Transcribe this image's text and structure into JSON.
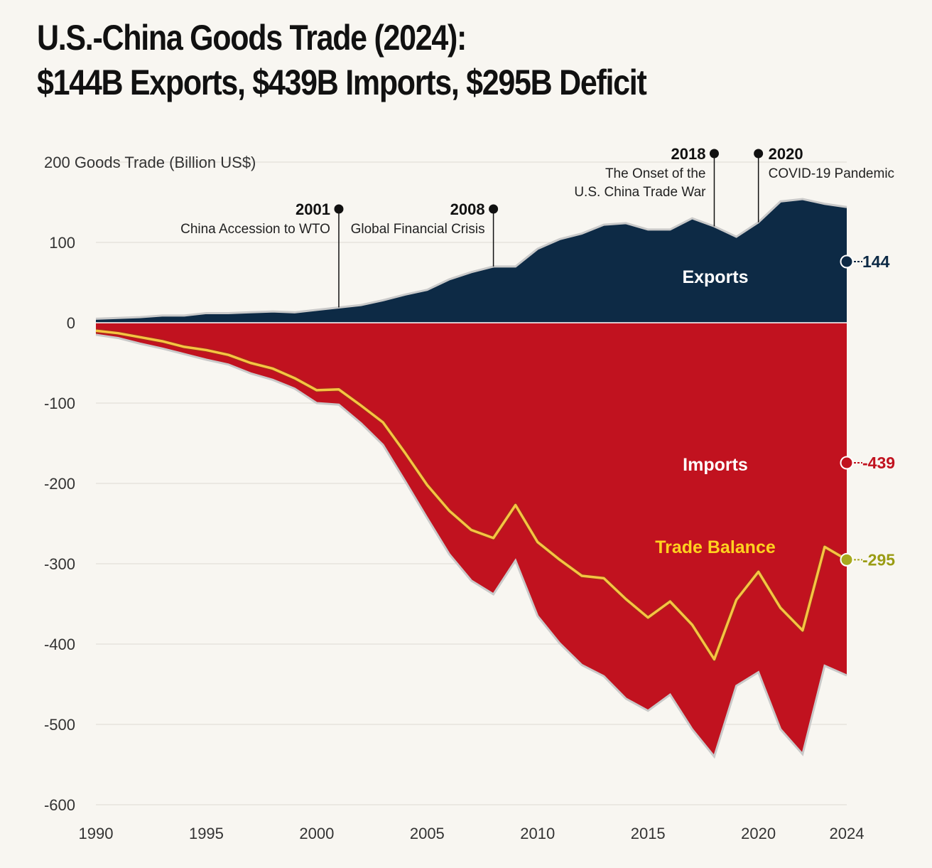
{
  "title_line1": "U.S.-China Goods Trade (2024):",
  "title_line2": "$144B Exports, $439B Imports, $295B Deficit",
  "colors": {
    "exports": "#0d2a45",
    "imports": "#c1121f",
    "balance": "#f5c542",
    "balance_marker": "#a7a91f",
    "grid": "#dedbd3"
  },
  "chart_data": {
    "type": "area",
    "ylabel": "Goods Trade (Billion US$)",
    "ylim": [
      -600,
      200
    ],
    "yticks": [
      200,
      100,
      0,
      -100,
      -200,
      -300,
      -400,
      -500,
      -600
    ],
    "xlim": [
      1990,
      2024
    ],
    "xticks": [
      1990,
      1995,
      2000,
      2005,
      2010,
      2015,
      2020,
      2024
    ],
    "grid": true,
    "x": [
      1990,
      1991,
      1992,
      1993,
      1994,
      1995,
      1996,
      1997,
      1998,
      1999,
      2000,
      2001,
      2002,
      2003,
      2004,
      2005,
      2006,
      2007,
      2008,
      2009,
      2010,
      2011,
      2012,
      2013,
      2014,
      2015,
      2016,
      2017,
      2018,
      2019,
      2020,
      2021,
      2022,
      2023,
      2024
    ],
    "series": [
      {
        "name": "Exports",
        "values": [
          5,
          6,
          7,
          9,
          9,
          12,
          12,
          13,
          14,
          13,
          16,
          19,
          22,
          28,
          35,
          41,
          54,
          63,
          70,
          70,
          92,
          104,
          111,
          122,
          124,
          116,
          116,
          130,
          120,
          107,
          125,
          151,
          154,
          148,
          144
        ]
      },
      {
        "name": "Imports",
        "values": [
          -15,
          -19,
          -26,
          -32,
          -39,
          -46,
          -52,
          -63,
          -71,
          -82,
          -100,
          -102,
          -125,
          -152,
          -197,
          -243,
          -288,
          -321,
          -338,
          -296,
          -365,
          -399,
          -426,
          -440,
          -468,
          -483,
          -463,
          -506,
          -540,
          -452,
          -435,
          -506,
          -537,
          -427,
          -439
        ]
      },
      {
        "name": "Trade Balance",
        "values": [
          -10,
          -13,
          -18,
          -23,
          -30,
          -34,
          -40,
          -50,
          -57,
          -69,
          -84,
          -83,
          -103,
          -124,
          -162,
          -202,
          -234,
          -258,
          -268,
          -227,
          -273,
          -295,
          -315,
          -318,
          -344,
          -367,
          -347,
          -376,
          -419,
          -345,
          -310,
          -355,
          -383,
          -279,
          -295
        ]
      }
    ],
    "annotations": [
      {
        "year": "2001",
        "text": [
          "China Accession to WTO"
        ],
        "x": 2001
      },
      {
        "year": "2008",
        "text": [
          "Global Financial Crisis"
        ],
        "x": 2008
      },
      {
        "year": "2018",
        "text": [
          "The Onset of the",
          "U.S. China Trade War"
        ],
        "x": 2018
      },
      {
        "year": "2020",
        "text": [
          "COVID-19 Pandemic"
        ],
        "x": 2020
      }
    ],
    "area_labels": {
      "exports": "Exports",
      "imports": "Imports",
      "balance": "Trade Balance"
    },
    "end_labels": {
      "exports": "144",
      "imports": "-439",
      "balance": "-295"
    }
  }
}
